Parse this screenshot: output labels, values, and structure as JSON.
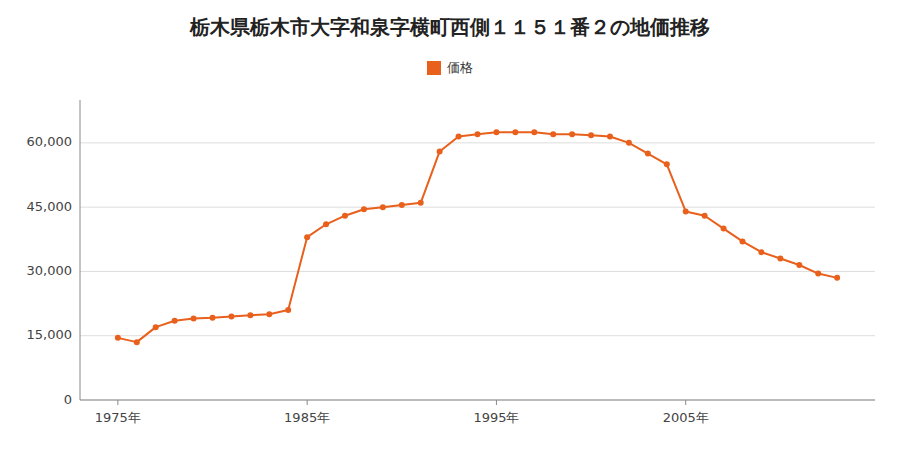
{
  "chart_data": {
    "type": "line",
    "title": "栃木県栃木市大字和泉字横町西側１１５１番２の地価推移",
    "x": [
      1975,
      1976,
      1977,
      1978,
      1979,
      1980,
      1981,
      1982,
      1983,
      1984,
      1985,
      1986,
      1987,
      1988,
      1989,
      1990,
      1991,
      1992,
      1993,
      1994,
      1995,
      1996,
      1997,
      1998,
      1999,
      2000,
      2001,
      2002,
      2003,
      2004,
      2005,
      2006,
      2007,
      2008,
      2009,
      2010,
      2011,
      2012,
      2013
    ],
    "series": [
      {
        "name": "価格",
        "color": "#e8601c",
        "marker": "circle",
        "values": [
          14500,
          13500,
          17000,
          18500,
          19000,
          19200,
          19500,
          19800,
          20000,
          21000,
          38000,
          41000,
          43000,
          44500,
          45000,
          45500,
          46000,
          58000,
          61500,
          62000,
          62500,
          62500,
          62500,
          62000,
          62000,
          61800,
          61500,
          60000,
          57500,
          55000,
          44000,
          43000,
          40000,
          37000,
          34500,
          33000,
          31500,
          29500,
          28500
        ]
      }
    ],
    "xlim": [
      1973,
      2015
    ],
    "xticks": [
      {
        "value": 1975,
        "label": "1975年"
      },
      {
        "value": 1985,
        "label": "1985年"
      },
      {
        "value": 1995,
        "label": "1995年"
      },
      {
        "value": 2005,
        "label": "2005年"
      }
    ],
    "ylim": [
      0,
      70000
    ],
    "yticks": [
      0,
      {
        "value": 15000,
        "label": "15,000"
      },
      {
        "value": 30000,
        "label": "30,000"
      },
      {
        "value": 45000,
        "label": "45,000"
      },
      {
        "value": 60000,
        "label": "60,000"
      }
    ],
    "grid": true,
    "legend": "top"
  }
}
